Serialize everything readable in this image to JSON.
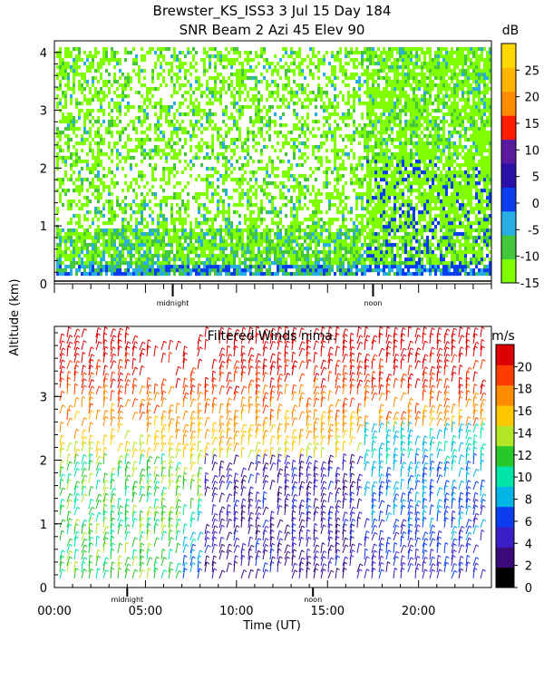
{
  "header": {
    "title_line1": "Brewster_KS_ISS3    3 Jul 15 Day 184",
    "title_line2": "SNR Beam 2 Azi  45 Elev 90"
  },
  "y_axis_label": "Altitude (km)",
  "chart_data": [
    {
      "type": "heatmap",
      "name": "snr",
      "title": "SNR Beam 2 Azi  45 Elev 90",
      "ylabel": "Altitude (km)",
      "ylim": [
        0,
        4.2
      ],
      "y_ticks": [
        "0",
        "1",
        "2",
        "3",
        "4"
      ],
      "xlim_hours": [
        0,
        24
      ],
      "x_markers": [
        "midnight",
        "noon"
      ],
      "colorbar": {
        "unit": "dB",
        "tick_labels": [
          "25",
          "20",
          "15",
          "10",
          "5",
          "0",
          "-5",
          "-10",
          "-15"
        ],
        "range": [
          -15,
          30
        ],
        "colors": [
          "#7fff00",
          "#43c73c",
          "#27aee4",
          "#0a3cf0",
          "#2a0fa8",
          "#5a1aa0",
          "#ff1e00",
          "#ff8c00",
          "#ffb400",
          "#ffd700"
        ]
      }
    },
    {
      "type": "scatter",
      "name": "winds",
      "title": "Filtered Winds nima.",
      "ylabel": "Altitude (km)",
      "ylim": [
        0,
        4.1
      ],
      "y_ticks": [
        "0",
        "1",
        "2",
        "3"
      ],
      "xlabel": "Time (UT)",
      "x_ticks": [
        "00:00",
        "05:00",
        "10:00",
        "15:00",
        "20:00"
      ],
      "xlim_hours": [
        0,
        24
      ],
      "x_markers": [
        "midnight",
        "noon"
      ],
      "colorbar": {
        "unit": "m/s",
        "tick_labels": [
          "20",
          "18",
          "16",
          "14",
          "12",
          "10",
          "8",
          "6",
          "4",
          "2",
          "0"
        ],
        "range": [
          0,
          22
        ],
        "colors": [
          "#000000",
          "#3a0a78",
          "#3c1ec8",
          "#0a3cf0",
          "#00b4e6",
          "#00e6aa",
          "#28c828",
          "#b4e628",
          "#ffc800",
          "#ff8c00",
          "#ff3c00",
          "#dc0000"
        ]
      }
    }
  ]
}
